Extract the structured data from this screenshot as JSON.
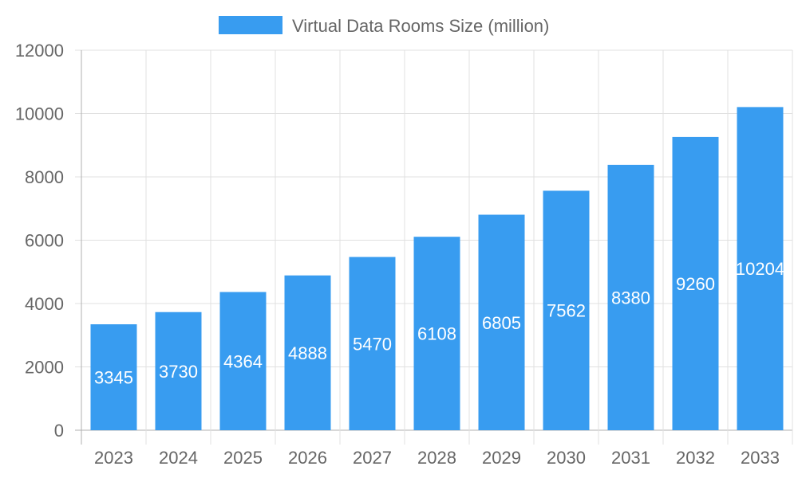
{
  "chart_data": {
    "type": "bar",
    "title": "",
    "xlabel": "",
    "ylabel": "",
    "categories": [
      "2023",
      "2024",
      "2025",
      "2026",
      "2027",
      "2028",
      "2029",
      "2030",
      "2031",
      "2032",
      "2033"
    ],
    "series": [
      {
        "name": "Virtual Data Rooms Size (million)",
        "values": [
          3345,
          3730,
          4364,
          4888,
          5470,
          6108,
          6805,
          7562,
          8380,
          9260,
          10204
        ]
      }
    ],
    "ylim": [
      0,
      12000
    ],
    "yticks": [
      0,
      2000,
      4000,
      6000,
      8000,
      10000,
      12000
    ],
    "grid": true,
    "legend_position": "top",
    "data_labels": true,
    "colors": {
      "bar": "#389cf0",
      "grid": "#e0e0e0",
      "axis": "#b0b0b0",
      "text": "#666666",
      "label": "#ffffff"
    }
  }
}
